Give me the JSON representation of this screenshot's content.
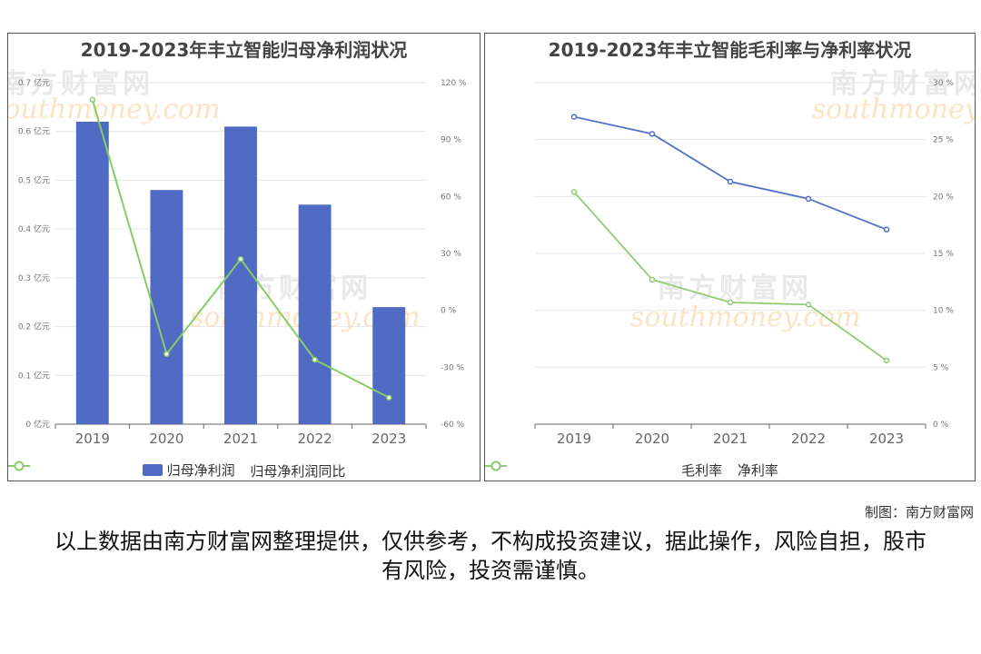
{
  "left_chart": {
    "title": "2019-2023年丰立智能归母净利润状况",
    "legend": [
      {
        "label": "归母净利润",
        "color": "#4f6bc4",
        "kind": "bar"
      },
      {
        "label": "归母净利润同比",
        "color": "#88cc66",
        "kind": "line"
      }
    ]
  },
  "right_chart": {
    "title": "2019-2023年丰立智能毛利率与净利率状况",
    "legend": [
      {
        "label": "毛利率",
        "color": "#5470c6",
        "kind": "line"
      },
      {
        "label": "净利率",
        "color": "#91cc75",
        "kind": "line"
      }
    ]
  },
  "watermark": {
    "cn": "南方财富网",
    "en": "southmoney.com"
  },
  "footer": {
    "maker": "制图：南方财富网",
    "disclaimer": "以上数据由南方财富网整理提供，仅供参考，不构成投资建议，据此操作，风险自担，股市有风险，投资需谨慎。"
  },
  "chart_data": [
    {
      "type": "bar",
      "title": "2019-2023年丰立智能归母净利润状况",
      "categories": [
        "2019",
        "2020",
        "2021",
        "2022",
        "2023"
      ],
      "series": [
        {
          "name": "归母净利润",
          "type": "bar",
          "axis": "left",
          "color": "#4f6bc4",
          "values": [
            0.62,
            0.48,
            0.61,
            0.45,
            0.24
          ]
        },
        {
          "name": "归母净利润同比",
          "type": "line",
          "axis": "right",
          "color": "#88cc66",
          "values": [
            111,
            -23,
            27,
            -26,
            -46
          ]
        }
      ],
      "y_left": {
        "min": 0,
        "max": 0.7,
        "step": 0.1,
        "unit": "亿元",
        "ticks": [
          "0 亿元",
          "0.1 亿元",
          "0.2 亿元",
          "0.3 亿元",
          "0.4 亿元",
          "0.5 亿元",
          "0.6 亿元",
          "0.7 亿元"
        ]
      },
      "y_right": {
        "min": -60,
        "max": 120,
        "step": 30,
        "unit": "%",
        "ticks": [
          "-60 %",
          "-30 %",
          "0 %",
          "30 %",
          "60 %",
          "90 %",
          "120 %"
        ]
      },
      "grid": true,
      "legend_position": "bottom"
    },
    {
      "type": "line",
      "title": "2019-2023年丰立智能毛利率与净利率状况",
      "categories": [
        "2019",
        "2020",
        "2021",
        "2022",
        "2023"
      ],
      "series": [
        {
          "name": "毛利率",
          "color": "#5470c6",
          "values": [
            27.0,
            25.5,
            21.3,
            19.8,
            17.1
          ]
        },
        {
          "name": "净利率",
          "color": "#91cc75",
          "values": [
            20.4,
            12.7,
            10.7,
            10.5,
            5.6
          ]
        }
      ],
      "y_right": {
        "min": 0,
        "max": 30,
        "step": 5,
        "unit": "%",
        "ticks": [
          "0 %",
          "5 %",
          "10 %",
          "15 %",
          "20 %",
          "25 %",
          "30 %"
        ]
      },
      "grid": true,
      "legend_position": "bottom"
    }
  ]
}
